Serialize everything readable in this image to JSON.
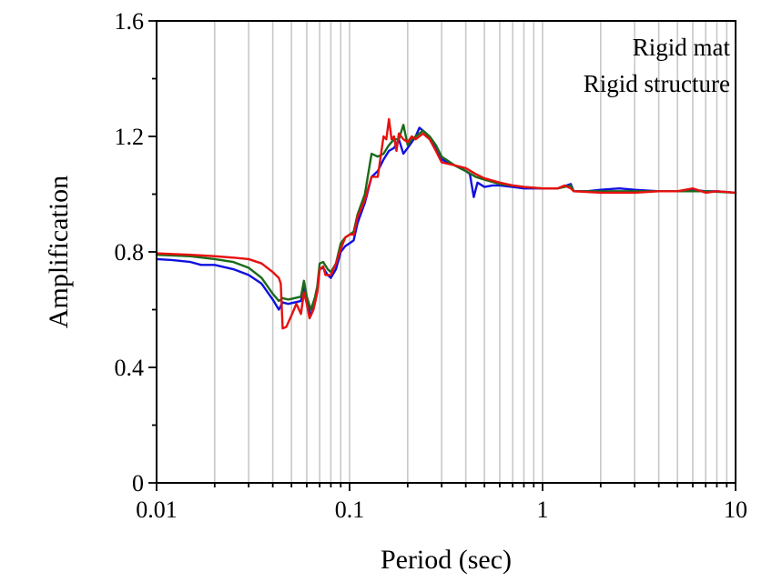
{
  "chart_data": {
    "type": "line",
    "xlabel": "Period (sec)",
    "ylabel": "Amplification",
    "xscale": "log",
    "xlim": [
      0.01,
      10
    ],
    "ylim": [
      0,
      1.6
    ],
    "x_ticks": [
      0.01,
      0.1,
      1,
      10
    ],
    "x_tick_labels": [
      "0.01",
      "0.1",
      "1",
      "10"
    ],
    "y_ticks": [
      0,
      0.4,
      0.8,
      1.2,
      1.6
    ],
    "y_tick_labels": [
      "0",
      "0.4",
      "0.8",
      "1.2",
      "1.6"
    ],
    "grid": "vertical",
    "annotations": [
      "Rigid mat",
      "Rigid structure"
    ],
    "annotation_position": "top-right",
    "series": [
      {
        "color": "#1010e0",
        "points": [
          [
            0.01,
            0.775
          ],
          [
            0.012,
            0.772
          ],
          [
            0.015,
            0.765
          ],
          [
            0.017,
            0.755
          ],
          [
            0.02,
            0.755
          ],
          [
            0.025,
            0.74
          ],
          [
            0.03,
            0.72
          ],
          [
            0.035,
            0.69
          ],
          [
            0.04,
            0.635
          ],
          [
            0.043,
            0.6
          ],
          [
            0.045,
            0.625
          ],
          [
            0.048,
            0.62
          ],
          [
            0.052,
            0.625
          ],
          [
            0.056,
            0.63
          ],
          [
            0.058,
            0.68
          ],
          [
            0.06,
            0.625
          ],
          [
            0.063,
            0.58
          ],
          [
            0.066,
            0.62
          ],
          [
            0.068,
            0.665
          ],
          [
            0.07,
            0.74
          ],
          [
            0.073,
            0.745
          ],
          [
            0.077,
            0.72
          ],
          [
            0.08,
            0.71
          ],
          [
            0.085,
            0.74
          ],
          [
            0.09,
            0.8
          ],
          [
            0.095,
            0.82
          ],
          [
            0.1,
            0.83
          ],
          [
            0.105,
            0.84
          ],
          [
            0.11,
            0.9
          ],
          [
            0.12,
            0.97
          ],
          [
            0.13,
            1.06
          ],
          [
            0.14,
            1.08
          ],
          [
            0.15,
            1.12
          ],
          [
            0.16,
            1.15
          ],
          [
            0.17,
            1.16
          ],
          [
            0.18,
            1.19
          ],
          [
            0.19,
            1.14
          ],
          [
            0.2,
            1.16
          ],
          [
            0.21,
            1.18
          ],
          [
            0.22,
            1.2
          ],
          [
            0.23,
            1.23
          ],
          [
            0.25,
            1.21
          ],
          [
            0.27,
            1.18
          ],
          [
            0.3,
            1.12
          ],
          [
            0.35,
            1.1
          ],
          [
            0.4,
            1.08
          ],
          [
            0.42,
            1.07
          ],
          [
            0.44,
            0.99
          ],
          [
            0.46,
            1.04
          ],
          [
            0.5,
            1.025
          ],
          [
            0.55,
            1.03
          ],
          [
            0.6,
            1.03
          ],
          [
            0.7,
            1.025
          ],
          [
            0.8,
            1.02
          ],
          [
            1,
            1.02
          ],
          [
            1.2,
            1.02
          ],
          [
            1.4,
            1.035
          ],
          [
            1.45,
            1.01
          ],
          [
            1.7,
            1.01
          ],
          [
            2,
            1.015
          ],
          [
            2.5,
            1.02
          ],
          [
            3,
            1.015
          ],
          [
            4,
            1.01
          ],
          [
            5,
            1.01
          ],
          [
            6,
            1.015
          ],
          [
            7,
            1.01
          ],
          [
            8,
            1.01
          ],
          [
            10,
            1.005
          ]
        ]
      },
      {
        "color": "#1a6b1a",
        "points": [
          [
            0.01,
            0.79
          ],
          [
            0.015,
            0.785
          ],
          [
            0.02,
            0.775
          ],
          [
            0.025,
            0.765
          ],
          [
            0.03,
            0.745
          ],
          [
            0.035,
            0.71
          ],
          [
            0.04,
            0.655
          ],
          [
            0.043,
            0.63
          ],
          [
            0.045,
            0.64
          ],
          [
            0.048,
            0.635
          ],
          [
            0.052,
            0.64
          ],
          [
            0.056,
            0.645
          ],
          [
            0.058,
            0.7
          ],
          [
            0.06,
            0.645
          ],
          [
            0.063,
            0.6
          ],
          [
            0.066,
            0.64
          ],
          [
            0.068,
            0.68
          ],
          [
            0.07,
            0.76
          ],
          [
            0.073,
            0.765
          ],
          [
            0.077,
            0.74
          ],
          [
            0.08,
            0.73
          ],
          [
            0.085,
            0.76
          ],
          [
            0.09,
            0.83
          ],
          [
            0.095,
            0.85
          ],
          [
            0.1,
            0.86
          ],
          [
            0.105,
            0.87
          ],
          [
            0.11,
            0.93
          ],
          [
            0.12,
            1.0
          ],
          [
            0.13,
            1.14
          ],
          [
            0.14,
            1.13
          ],
          [
            0.15,
            1.14
          ],
          [
            0.16,
            1.17
          ],
          [
            0.17,
            1.19
          ],
          [
            0.18,
            1.19
          ],
          [
            0.19,
            1.24
          ],
          [
            0.2,
            1.17
          ],
          [
            0.21,
            1.19
          ],
          [
            0.22,
            1.2
          ],
          [
            0.24,
            1.22
          ],
          [
            0.26,
            1.2
          ],
          [
            0.28,
            1.17
          ],
          [
            0.3,
            1.13
          ],
          [
            0.35,
            1.1
          ],
          [
            0.4,
            1.08
          ],
          [
            0.45,
            1.06
          ],
          [
            0.5,
            1.05
          ],
          [
            0.6,
            1.035
          ],
          [
            0.7,
            1.03
          ],
          [
            0.8,
            1.025
          ],
          [
            1,
            1.02
          ],
          [
            1.2,
            1.02
          ],
          [
            1.4,
            1.03
          ],
          [
            1.45,
            1.01
          ],
          [
            2,
            1.01
          ],
          [
            3,
            1.01
          ],
          [
            5,
            1.01
          ],
          [
            7,
            1.01
          ],
          [
            10,
            1.005
          ]
        ]
      },
      {
        "color": "#e81010",
        "points": [
          [
            0.01,
            0.795
          ],
          [
            0.015,
            0.79
          ],
          [
            0.02,
            0.785
          ],
          [
            0.025,
            0.78
          ],
          [
            0.03,
            0.775
          ],
          [
            0.035,
            0.76
          ],
          [
            0.04,
            0.73
          ],
          [
            0.043,
            0.71
          ],
          [
            0.044,
            0.69
          ],
          [
            0.045,
            0.535
          ],
          [
            0.047,
            0.54
          ],
          [
            0.05,
            0.58
          ],
          [
            0.053,
            0.62
          ],
          [
            0.056,
            0.585
          ],
          [
            0.058,
            0.66
          ],
          [
            0.06,
            0.62
          ],
          [
            0.062,
            0.57
          ],
          [
            0.065,
            0.6
          ],
          [
            0.068,
            0.66
          ],
          [
            0.07,
            0.74
          ],
          [
            0.073,
            0.75
          ],
          [
            0.075,
            0.72
          ],
          [
            0.08,
            0.72
          ],
          [
            0.085,
            0.76
          ],
          [
            0.09,
            0.81
          ],
          [
            0.095,
            0.85
          ],
          [
            0.1,
            0.86
          ],
          [
            0.105,
            0.86
          ],
          [
            0.11,
            0.92
          ],
          [
            0.12,
            0.98
          ],
          [
            0.13,
            1.06
          ],
          [
            0.14,
            1.06
          ],
          [
            0.15,
            1.2
          ],
          [
            0.155,
            1.19
          ],
          [
            0.16,
            1.26
          ],
          [
            0.165,
            1.19
          ],
          [
            0.17,
            1.2
          ],
          [
            0.175,
            1.15
          ],
          [
            0.18,
            1.21
          ],
          [
            0.19,
            1.19
          ],
          [
            0.2,
            1.18
          ],
          [
            0.21,
            1.2
          ],
          [
            0.22,
            1.19
          ],
          [
            0.24,
            1.21
          ],
          [
            0.26,
            1.19
          ],
          [
            0.28,
            1.15
          ],
          [
            0.3,
            1.11
          ],
          [
            0.35,
            1.1
          ],
          [
            0.4,
            1.09
          ],
          [
            0.45,
            1.07
          ],
          [
            0.5,
            1.055
          ],
          [
            0.6,
            1.04
          ],
          [
            0.7,
            1.03
          ],
          [
            0.8,
            1.025
          ],
          [
            1,
            1.02
          ],
          [
            1.2,
            1.02
          ],
          [
            1.3,
            1.03
          ],
          [
            1.4,
            1.02
          ],
          [
            1.45,
            1.01
          ],
          [
            2,
            1.005
          ],
          [
            3,
            1.005
          ],
          [
            4,
            1.01
          ],
          [
            5,
            1.01
          ],
          [
            6,
            1.02
          ],
          [
            7,
            1.005
          ],
          [
            8,
            1.01
          ],
          [
            10,
            1.005
          ]
        ]
      }
    ]
  }
}
